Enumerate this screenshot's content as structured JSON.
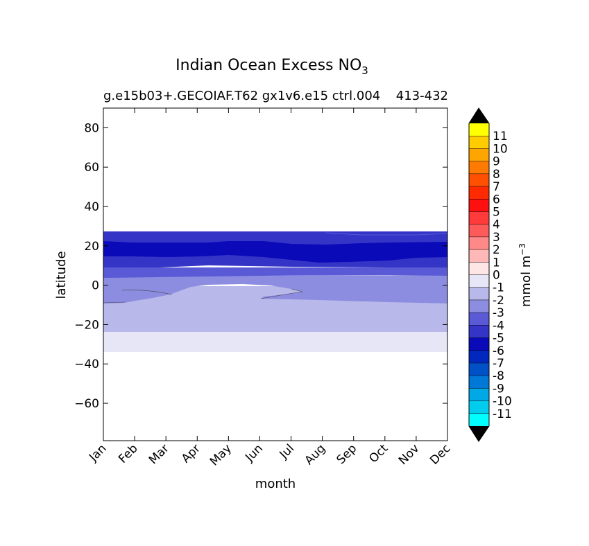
{
  "chart_data": {
    "type": "contourf",
    "title": "Indian Ocean Excess NO",
    "title_subscript": "3",
    "subtitle_left": "g.e15b03+.GECOIAF.T62 gx1v6.e15 ctrl.004",
    "subtitle_right": "413-432",
    "xlabel": "month",
    "ylabel": "latitude",
    "x_ticks": [
      "Jan",
      "Feb",
      "Mar",
      "Apr",
      "May",
      "Jun",
      "Jul",
      "Aug",
      "Sep",
      "Oct",
      "Nov",
      "Dec"
    ],
    "ylim": [
      -79,
      90
    ],
    "y_ticks": [
      80,
      60,
      40,
      20,
      0,
      -20,
      -40,
      -60
    ],
    "y_tick_labels": [
      "80",
      "60",
      "40",
      "20",
      "0",
      "−20",
      "−40",
      "−60"
    ],
    "colorbar": {
      "label": "mmol m",
      "label_superscript": "−3",
      "levels": [
        "11",
        "10",
        "9",
        "8",
        "7",
        "6",
        "5",
        "4",
        "3",
        "2",
        "1",
        "0",
        "-1",
        "-2",
        "-3",
        "-4",
        "-5",
        "-6",
        "-7",
        "-8",
        "-9",
        "-10",
        "-11"
      ],
      "colors": [
        "#ffff00",
        "#ffcc00",
        "#ffa500",
        "#ff7a00",
        "#ff4f00",
        "#ff2a00",
        "#ff1010",
        "#ff3a3a",
        "#ff5a5a",
        "#ff8888",
        "#ffb8b8",
        "#ffe6e6",
        "#e6e6f6",
        "#b8b8ea",
        "#8c8ce0",
        "#5a5ad6",
        "#3434c6",
        "#0a0ab8",
        "#0028be",
        "#0050c8",
        "#0078d8",
        "#00a8e6",
        "#00ccee",
        "#00ffff"
      ],
      "over_color": "#000000",
      "under_color": "#000000"
    },
    "bands": [
      {
        "lat_min": -34,
        "lat_max": -24,
        "level": "0 to -1",
        "color": "#e6e6f6"
      },
      {
        "lat_min": -24,
        "lat_max": 5,
        "level": "-1 to -2",
        "color": "#b8b8ea"
      },
      {
        "lat_min": -10,
        "lat_max": 5,
        "level": "-2 to -3",
        "color": "#8c8ce0"
      },
      {
        "lat_min": 4,
        "lat_max": 9,
        "level": "-3 to -4",
        "color": "#5a5ad6"
      },
      {
        "lat_min": 9,
        "lat_max": 27,
        "level": "-4 to -5",
        "color": "#3434c6"
      },
      {
        "lat_min": 13,
        "lat_max": 22,
        "level": "-5 to -6",
        "color": "#0a0ab8"
      }
    ]
  }
}
